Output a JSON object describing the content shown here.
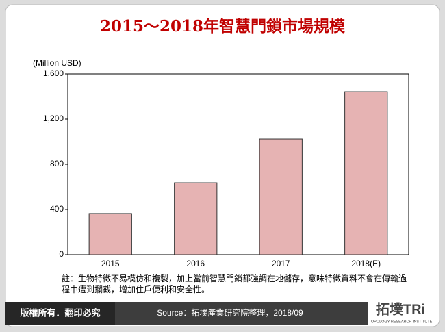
{
  "chart_data": {
    "type": "bar",
    "title": "2015～2018年智慧門鎖市場規模",
    "y_axis_label": "(Million USD)",
    "categories": [
      "2015",
      "2016",
      "2017",
      "2018(E)"
    ],
    "values": [
      364,
      636,
      1024,
      1442
    ],
    "color": "#e6b3b3",
    "ylim": [
      0,
      1600
    ],
    "yticks": [
      0,
      400,
      800,
      {
        "value": 1200,
        "label": "1,200"
      },
      {
        "value": 1600,
        "label": "1,600"
      }
    ],
    "grid": false,
    "note": "註：生物特徵不易模仿和複製，加上當前智慧門鎖都強調在地儲存，意味特徵資料不會在傳輸過程中遭到攔截，增加住戶便利和安全性。",
    "copyright": "版權所有．翻印必究",
    "source": "Source：拓墣產業研究院整理，2018/09",
    "logo": "拓墣TRi",
    "logo_subtitle": "TOPOLOGY RESEARCH INSTITUTE"
  }
}
